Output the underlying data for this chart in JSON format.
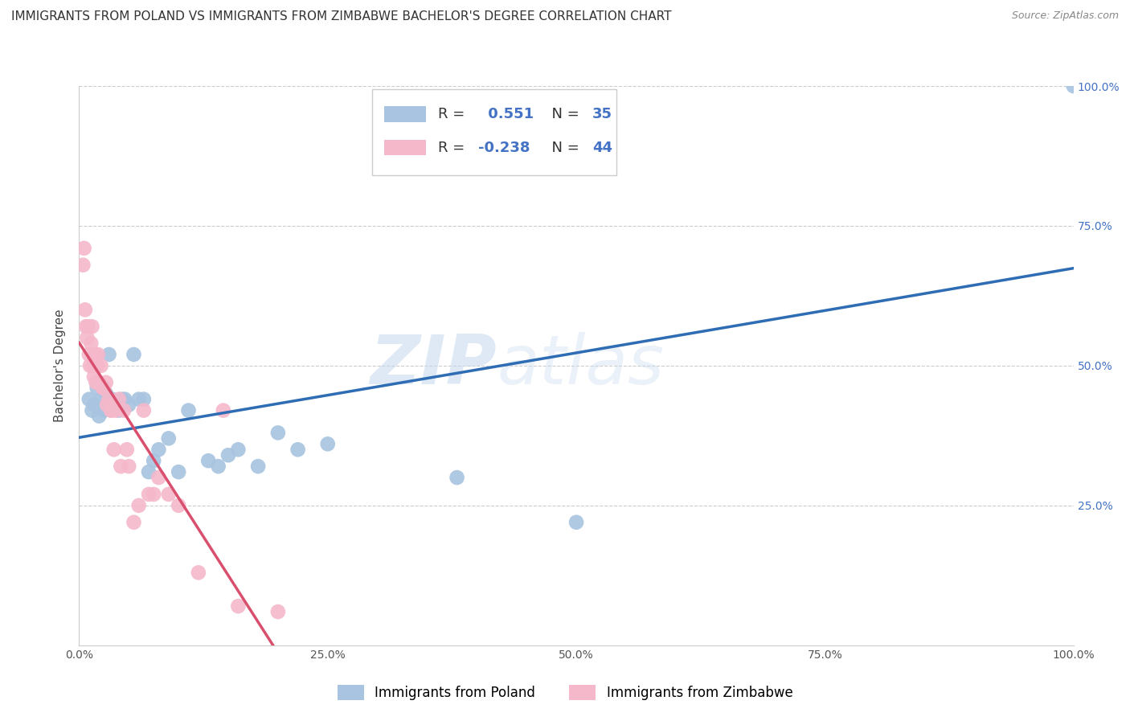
{
  "title": "IMMIGRANTS FROM POLAND VS IMMIGRANTS FROM ZIMBABWE BACHELOR'S DEGREE CORRELATION CHART",
  "source": "Source: ZipAtlas.com",
  "ylabel": "Bachelor's Degree",
  "watermark": "ZIPatlas",
  "r_poland": 0.551,
  "n_poland": 35,
  "r_zimbabwe": -0.238,
  "n_zimbabwe": 44,
  "color_poland": "#a8c4e0",
  "color_poland_line": "#2e6db4",
  "color_zimbabwe": "#f5b8cb",
  "color_zimbabwe_line": "#d94f6e",
  "xlim": [
    0.0,
    1.0
  ],
  "ylim": [
    0.0,
    1.0
  ],
  "xtick_pos": [
    0.0,
    0.25,
    0.5,
    0.75,
    1.0
  ],
  "xtick_labels": [
    "0.0%",
    "25.0%",
    "50.0%",
    "75.0%",
    "100.0%"
  ],
  "ytick_pos": [
    0.25,
    0.5,
    0.75,
    1.0
  ],
  "ytick_labels": [
    "25.0%",
    "50.0%",
    "75.0%",
    "100.0%"
  ],
  "poland_scatter_x": [
    0.01,
    0.013,
    0.015,
    0.018,
    0.02,
    0.022,
    0.025,
    0.027,
    0.03,
    0.033,
    0.035,
    0.04,
    0.043,
    0.046,
    0.05,
    0.055,
    0.06,
    0.065,
    0.07,
    0.075,
    0.08,
    0.09,
    0.1,
    0.11,
    0.13,
    0.14,
    0.15,
    0.16,
    0.18,
    0.2,
    0.22,
    0.25,
    0.38,
    0.5,
    1.0
  ],
  "poland_scatter_y": [
    0.44,
    0.42,
    0.43,
    0.46,
    0.41,
    0.44,
    0.42,
    0.45,
    0.52,
    0.44,
    0.43,
    0.42,
    0.44,
    0.44,
    0.43,
    0.52,
    0.44,
    0.44,
    0.31,
    0.33,
    0.35,
    0.37,
    0.31,
    0.42,
    0.33,
    0.32,
    0.34,
    0.35,
    0.32,
    0.38,
    0.35,
    0.36,
    0.3,
    0.22,
    1.0
  ],
  "zimbabwe_scatter_x": [
    0.004,
    0.005,
    0.006,
    0.007,
    0.008,
    0.009,
    0.01,
    0.011,
    0.012,
    0.013,
    0.014,
    0.015,
    0.016,
    0.017,
    0.018,
    0.019,
    0.02,
    0.022,
    0.024,
    0.025,
    0.027,
    0.028,
    0.03,
    0.032,
    0.033,
    0.035,
    0.037,
    0.04,
    0.042,
    0.045,
    0.048,
    0.05,
    0.055,
    0.06,
    0.065,
    0.07,
    0.075,
    0.08,
    0.09,
    0.1,
    0.12,
    0.145,
    0.16,
    0.2
  ],
  "zimbabwe_scatter_y": [
    0.68,
    0.71,
    0.6,
    0.57,
    0.55,
    0.57,
    0.52,
    0.5,
    0.54,
    0.57,
    0.5,
    0.48,
    0.52,
    0.47,
    0.5,
    0.52,
    0.47,
    0.5,
    0.46,
    0.46,
    0.47,
    0.43,
    0.44,
    0.42,
    0.42,
    0.35,
    0.42,
    0.44,
    0.32,
    0.42,
    0.35,
    0.32,
    0.22,
    0.25,
    0.42,
    0.27,
    0.27,
    0.3,
    0.27,
    0.25,
    0.13,
    0.42,
    0.07,
    0.06
  ],
  "zim_line_cutoff": 0.3,
  "pol_line_start_y": 0.35,
  "pol_line_end_y": 0.8,
  "zim_line_start_y": 0.65,
  "zim_line_end_y": 0.35,
  "grid_color": "#cccccc",
  "background_color": "#ffffff",
  "title_fontsize": 11,
  "axis_label_fontsize": 11,
  "tick_fontsize": 10,
  "tick_color": "#4472c4",
  "bottom_legend_label1": "Immigrants from Poland",
  "bottom_legend_label2": "Immigrants from Zimbabwe"
}
